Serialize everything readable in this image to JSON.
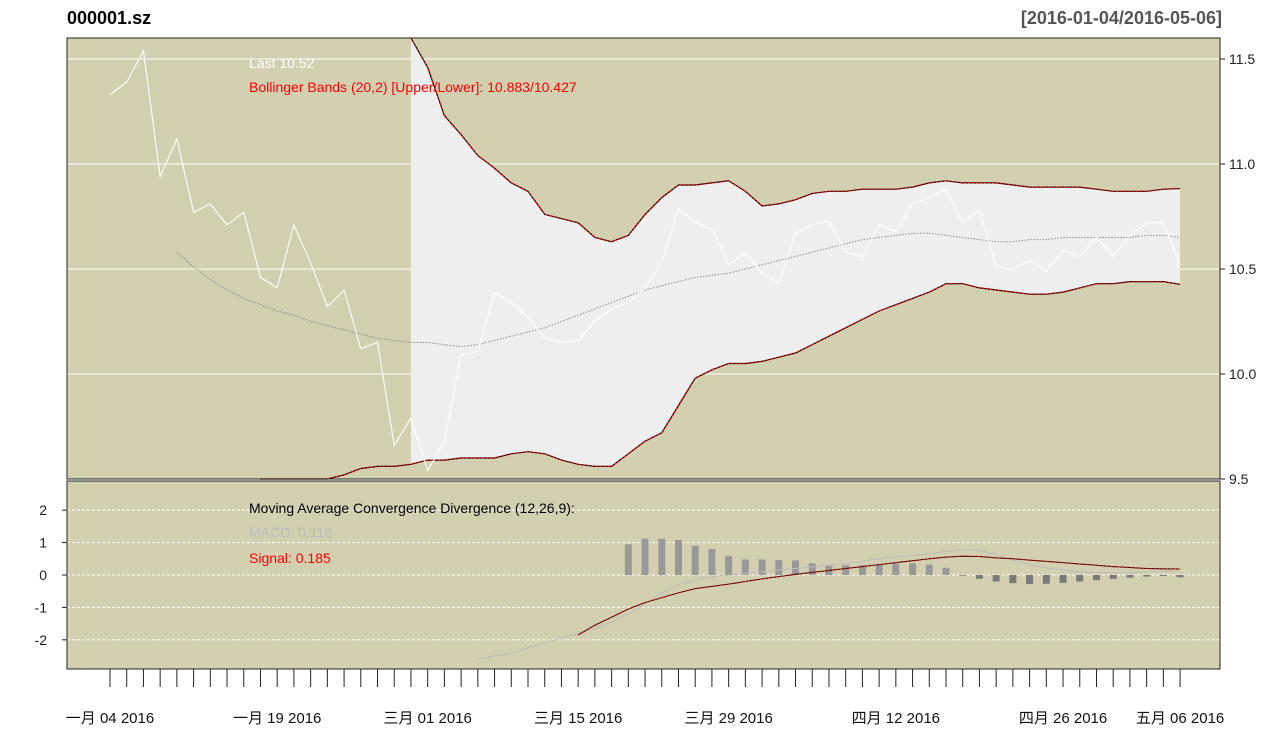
{
  "chart_data": [
    {
      "type": "line",
      "title": "000001.sz",
      "date_range": "[2016-01-04/2016-05-06]",
      "x_tick_labels": [
        "一月 04 2016",
        "一月 19 2016",
        "三月 01 2016",
        "三月 15 2016",
        "三月 29 2016",
        "四月 12 2016",
        "四月 26 2016",
        "五月 06 2016"
      ],
      "y_ticks": [
        9.5,
        10.0,
        10.5,
        11.0,
        11.5
      ],
      "y_tick_labels": [
        "9.5",
        "10.0",
        "10.5",
        "11.0",
        "11.5"
      ],
      "ylim": [
        9.5,
        11.6
      ],
      "grid": true,
      "last_text": "Last 10.52",
      "bb_text": "Bollinger Bands (20,2) [Upper/Lower]: 10.883/10.427",
      "colors": {
        "background": "#d3d0b1",
        "band_fill": "#efefef",
        "price": "#ffffff",
        "bands": "#ff0000",
        "middle": "#888888"
      },
      "price": [
        11.33,
        11.39,
        11.54,
        10.94,
        11.12,
        10.77,
        10.81,
        10.71,
        10.77,
        10.46,
        10.41,
        10.71,
        10.53,
        10.32,
        10.4,
        10.12,
        10.15,
        9.66,
        9.79,
        9.54,
        9.68,
        10.09,
        10.11,
        10.39,
        10.34,
        10.27,
        10.17,
        10.15,
        10.16,
        10.25,
        10.31,
        10.34,
        10.41,
        10.53,
        10.79,
        10.72,
        10.69,
        10.52,
        10.58,
        10.48,
        10.43,
        10.67,
        10.71,
        10.73,
        10.58,
        10.56,
        10.71,
        10.68,
        10.81,
        10.84,
        10.88,
        10.72,
        10.78,
        10.51,
        10.5,
        10.54,
        10.49,
        10.59,
        10.56,
        10.65,
        10.56,
        10.66,
        10.72,
        10.72,
        10.52
      ],
      "bb_upper": [
        11.63,
        11.46,
        11.23,
        11.14,
        11.04,
        10.98,
        10.91,
        10.87,
        10.76,
        10.74,
        10.72,
        10.65,
        10.63,
        10.66,
        10.76,
        10.84,
        10.9,
        10.9,
        10.91,
        10.92,
        10.87,
        10.8,
        10.81,
        10.83,
        10.86,
        10.87,
        10.87,
        10.88,
        10.88,
        10.88,
        10.89,
        10.91,
        10.92,
        10.91,
        10.91,
        10.91,
        10.9,
        10.89,
        10.89,
        10.89,
        10.89,
        10.88,
        10.87,
        10.87,
        10.87,
        10.88,
        10.883
      ],
      "bb_middle": [
        10.58,
        10.51,
        10.45,
        10.4,
        10.36,
        10.33,
        10.3,
        10.28,
        10.25,
        10.23,
        10.21,
        10.19,
        10.17,
        10.16,
        10.15,
        10.15,
        10.14,
        10.13,
        10.14,
        10.16,
        10.18,
        10.2,
        10.22,
        10.25,
        10.28,
        10.31,
        10.34,
        10.37,
        10.4,
        10.42,
        10.44,
        10.46,
        10.47,
        10.48,
        10.5,
        10.52,
        10.54,
        10.56,
        10.58,
        10.6,
        10.62,
        10.64,
        10.65,
        10.66,
        10.67,
        10.67,
        10.66,
        10.65,
        10.64,
        10.63,
        10.63,
        10.64,
        10.64,
        10.65,
        10.65,
        10.65,
        10.65,
        10.65,
        10.66,
        10.66,
        10.65
      ],
      "bb_lower": [
        9.5,
        9.49,
        9.48,
        9.48,
        9.5,
        9.52,
        9.55,
        9.56,
        9.56,
        9.57,
        9.59,
        9.59,
        9.6,
        9.6,
        9.6,
        9.62,
        9.63,
        9.62,
        9.59,
        9.57,
        9.56,
        9.56,
        9.62,
        9.68,
        9.72,
        9.85,
        9.98,
        10.02,
        10.05,
        10.05,
        10.06,
        10.08,
        10.1,
        10.14,
        10.18,
        10.22,
        10.26,
        10.3,
        10.33,
        10.36,
        10.39,
        10.43,
        10.43,
        10.41,
        10.4,
        10.39,
        10.38,
        10.38,
        10.39,
        10.41,
        10.43,
        10.43,
        10.44,
        10.44,
        10.44,
        10.427
      ]
    },
    {
      "type": "bar",
      "title": "Moving Average Convergence Divergence (12,26,9):",
      "macd_text": "MACD: 0.116",
      "signal_text": "Signal: 0.185",
      "y_ticks": [
        -2,
        -1,
        0,
        1,
        2
      ],
      "y_tick_labels": [
        "-2",
        "-1",
        "0",
        "1",
        "2"
      ],
      "ylim": [
        -2.9,
        2.9
      ],
      "colors": {
        "macd": "#bbbbbb",
        "signal": "#ff0000",
        "histogram": "#999999"
      },
      "macd": [
        -2.6,
        -2.5,
        -2.4,
        -2.25,
        -2.1,
        -1.95,
        -1.8,
        -1.65,
        -1.45,
        -1.2,
        -0.9,
        -0.55,
        -0.3,
        -0.15,
        -0.05,
        0.0,
        0.05,
        0.1,
        0.15,
        0.2,
        0.25,
        0.3,
        0.35,
        0.42,
        0.5,
        0.56,
        0.6,
        0.65,
        0.72,
        0.78,
        0.76,
        0.62,
        0.45,
        0.32,
        0.22,
        0.15,
        0.1,
        0.08,
        0.06,
        0.07,
        0.1,
        0.12,
        0.116
      ],
      "signal": [
        -1.85,
        -1.55,
        -1.3,
        -1.05,
        -0.85,
        -0.7,
        -0.55,
        -0.42,
        -0.35,
        -0.28,
        -0.2,
        -0.12,
        -0.05,
        0.02,
        0.08,
        0.14,
        0.2,
        0.26,
        0.32,
        0.38,
        0.44,
        0.5,
        0.55,
        0.58,
        0.57,
        0.53,
        0.5,
        0.46,
        0.42,
        0.38,
        0.34,
        0.3,
        0.26,
        0.23,
        0.2,
        0.19,
        0.185
      ],
      "histogram": [
        0.95,
        1.12,
        1.12,
        1.08,
        0.9,
        0.8,
        0.58,
        0.48,
        0.48,
        0.46,
        0.45,
        0.36,
        0.28,
        0.3,
        0.3,
        0.32,
        0.35,
        0.36,
        0.32,
        0.22,
        0.0,
        -0.12,
        -0.2,
        -0.25,
        -0.28,
        -0.27,
        -0.24,
        -0.2,
        -0.16,
        -0.12,
        -0.08,
        -0.05,
        -0.03,
        -0.07
      ]
    }
  ]
}
